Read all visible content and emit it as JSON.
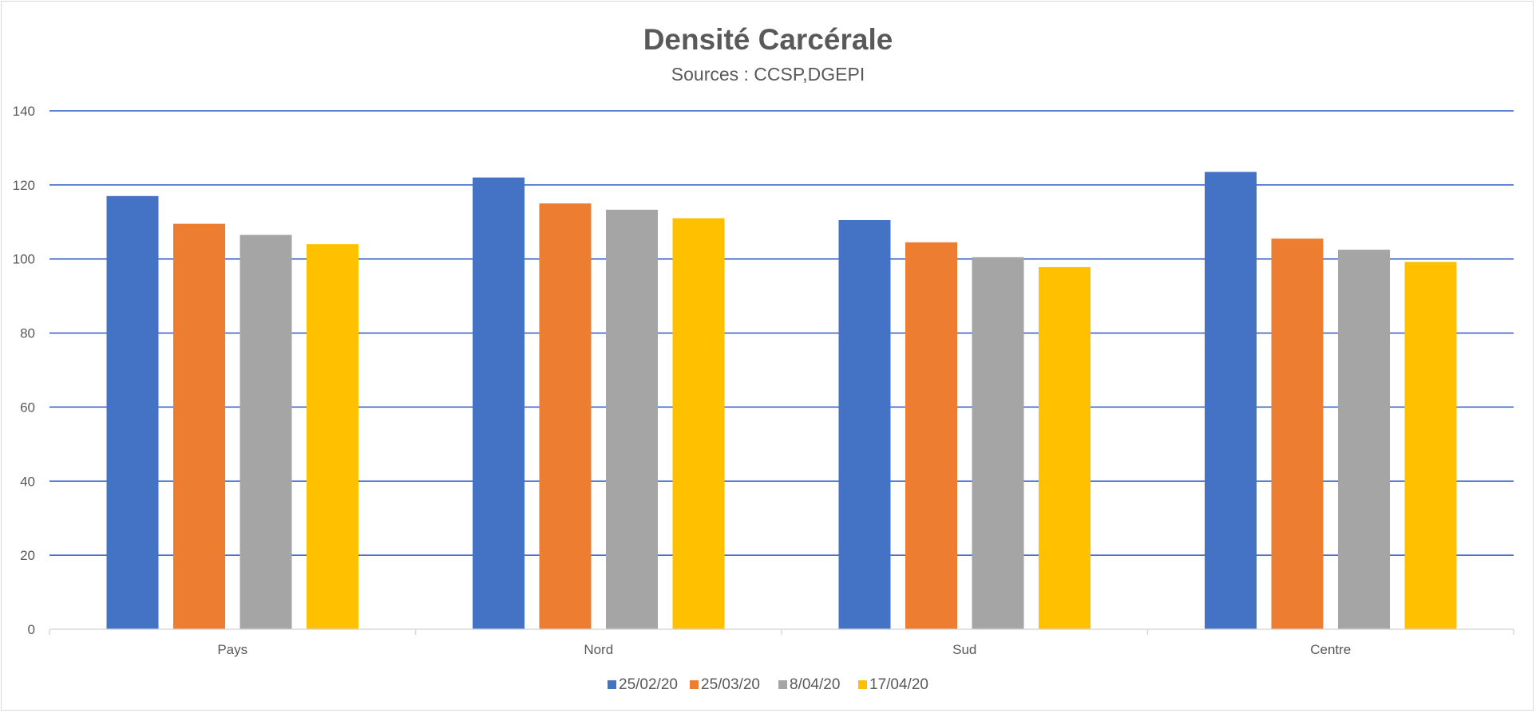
{
  "chart_data": {
    "type": "bar",
    "title": "Densité Carcérale",
    "subtitle": "Sources : CCSP,DGEPI",
    "xlabel": "",
    "ylabel": "",
    "ylim": [
      0,
      140
    ],
    "yticks": [
      0,
      20,
      40,
      60,
      80,
      100,
      120,
      140
    ],
    "grid": true,
    "legend": "bottom",
    "categories": [
      "Pays",
      "Nord",
      "Sud",
      "Centre"
    ],
    "series": [
      {
        "name": "25/02/20",
        "color": "#4472C4",
        "values": [
          117,
          122,
          110.5,
          123.5
        ]
      },
      {
        "name": "25/03/20",
        "color": "#ED7D31",
        "values": [
          109.5,
          115,
          104.5,
          105.5
        ]
      },
      {
        "name": "8/04/20",
        "color": "#A5A5A5",
        "values": [
          106.5,
          113.3,
          100.5,
          102.5
        ]
      },
      {
        "name": "17/04/20",
        "color": "#FFC000",
        "values": [
          104,
          111,
          97.8,
          99.2
        ]
      }
    ],
    "gridline_color": "#2E59C4"
  }
}
